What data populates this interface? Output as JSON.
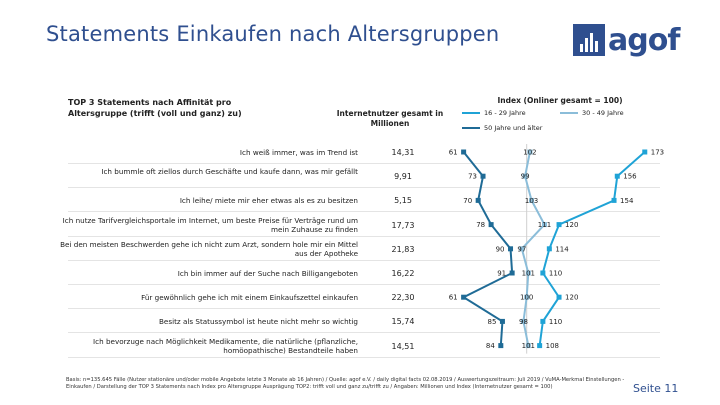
{
  "page": {
    "title": "Statements Einkaufen nach Altersgruppen",
    "logo_text": "agof",
    "page_number": "Seite 11",
    "footnote": "Basis: n=135.645 Fälle (Nutzer stationäre und/oder mobile Angebote letzte 3 Monate ab 16 Jahren) / Quelle: agof e.V. / daily digital facts 02.08.2019 / Auswertungszeitraum: Juli 2019 / VuMA-Merkmal Einstellungen - Einkaufen / Darstellung der TOP 3 Statements nach Index pro Altersgruppe Ausprägung TOP2: trifft voll und ganz zu/trifft zu / Angaben: Millionen und Index (Internetnutzer gesamt = 100)"
  },
  "panel": {
    "title": "TOP 3 Statements nach Affinität pro Altersgruppe (trifft (voll und ganz) zu)",
    "column_header": "Internetnutzer gesamt in Millionen",
    "index_header": "Index (Onliner gesamt = 100)"
  },
  "chart_data": {
    "type": "line",
    "orientation": "vertical-profile",
    "reference_index": 100,
    "categories": [
      "Ich weiß immer, was im Trend ist",
      "Ich bummle oft ziellos durch Geschäfte und kaufe dann, was mir gefällt",
      "Ich leihe/ miete mir eher etwas als es zu besitzen",
      "Ich nutze Tarifvergleichsportale im Internet, um beste Preise für Verträge rund um mein Zuhause zu finden",
      "Bei den meisten Beschwerden gehe ich nicht zum Arzt, sondern hole mir ein Mittel aus der Apotheke",
      "Ich bin immer auf der Suche nach Billigangeboten",
      "Für gewöhnlich gehe ich mit einem Einkaufszettel einkaufen",
      "Besitz als Statussymbol ist heute nicht mehr so wichtig",
      "Ich bevorzuge nach Möglichkeit Medikamente, die natürliche (pflanzliche, homöopathische) Bestandteile haben"
    ],
    "internet_users_millions": [
      "14,31",
      "9,91",
      "5,15",
      "17,73",
      "21,83",
      "16,22",
      "22,30",
      "15,74",
      "14,51"
    ],
    "series": [
      {
        "name": "16 - 29 Jahre",
        "color": "#1fa3d6",
        "values": [
          173,
          156,
          154,
          120,
          114,
          110,
          120,
          110,
          108
        ]
      },
      {
        "name": "30 - 49 Jahre",
        "color": "#8bbdd9",
        "values": [
          102,
          99,
          103,
          111,
          97,
          101,
          100,
          98,
          101
        ]
      },
      {
        "name": "50 Jahre und älter",
        "color": "#1f6b96",
        "values": [
          61,
          73,
          70,
          78,
          90,
          91,
          61,
          85,
          84
        ]
      }
    ]
  }
}
